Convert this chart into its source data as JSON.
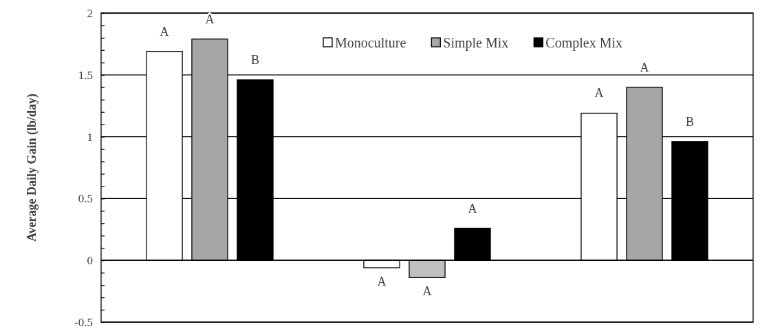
{
  "chart_data": {
    "type": "bar",
    "ylabel": "Average Daily Gain (lb/day)",
    "categories": [
      null,
      null,
      null
    ],
    "series": [
      {
        "name": "Monoculture",
        "color": "#ffffff",
        "values": [
          1.69,
          -0.06,
          1.19
        ]
      },
      {
        "name": "Simple Mix",
        "color": "#a6a6a6",
        "colors": [
          "#a6a6a6",
          "#bfbfbf",
          "#a6a6a6"
        ],
        "values": [
          1.79,
          -0.14,
          1.4
        ]
      },
      {
        "name": "Complex Mix",
        "color": "#000000",
        "values": [
          1.46,
          0.26,
          0.96
        ]
      }
    ],
    "ylim": [
      -0.5,
      2
    ],
    "yticks": [
      -0.5,
      {
        "value": -0.4,
        "label": null
      },
      {
        "value": -0.3,
        "label": null
      },
      {
        "value": -0.2,
        "label": null
      },
      {
        "value": -0.1,
        "label": null
      },
      0,
      {
        "value": 0.1,
        "label": null
      },
      {
        "value": 0.2,
        "label": null
      },
      {
        "value": 0.3,
        "label": null
      },
      {
        "value": 0.4,
        "label": null
      },
      0.5,
      {
        "value": 0.6,
        "label": null
      },
      {
        "value": 0.7,
        "label": null
      },
      {
        "value": 0.8,
        "label": null
      },
      {
        "value": 0.9,
        "label": null
      },
      1,
      {
        "value": 1.1,
        "label": null
      },
      {
        "value": 1.2,
        "label": null
      },
      {
        "value": 1.3,
        "label": null
      },
      {
        "value": 1.4,
        "label": null
      },
      1.5,
      {
        "value": 1.6,
        "label": null
      },
      {
        "value": 1.7,
        "label": null
      },
      {
        "value": 1.8,
        "label": null
      },
      {
        "value": 1.9,
        "label": null
      },
      2
    ],
    "annotations": [
      "A",
      "A",
      "B",
      "A",
      "A",
      "A",
      "A",
      "A",
      "B"
    ],
    "grid": "y",
    "legend": "top right"
  }
}
